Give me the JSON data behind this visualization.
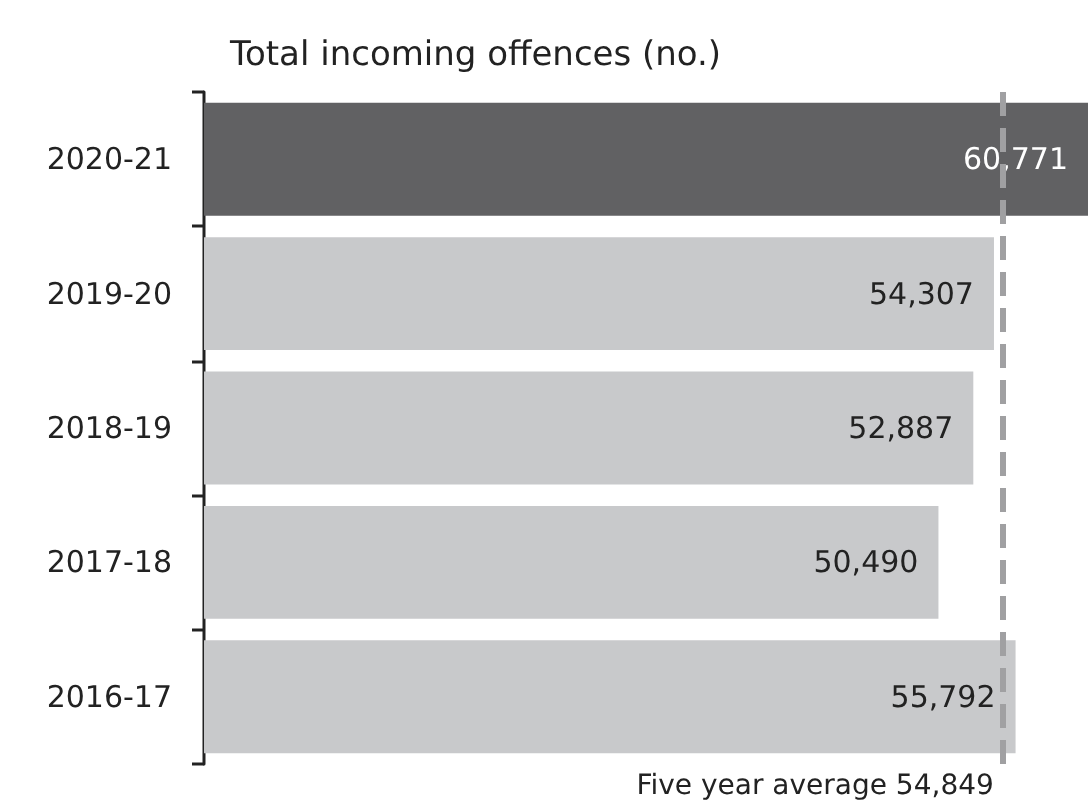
{
  "chart_data": {
    "type": "bar",
    "orientation": "horizontal",
    "title": "Total incoming offences (no.)",
    "categories": [
      "2020-21",
      "2019-20",
      "2018-19",
      "2017-18",
      "2016-17"
    ],
    "values": [
      60771,
      54307,
      52887,
      50490,
      55792
    ],
    "value_labels": [
      "60,771",
      "54,307",
      "52,887",
      "50,490",
      "55,792"
    ],
    "colors": [
      "#616163",
      "#c8c9cb",
      "#c8c9cb",
      "#c8c9cb",
      "#c8c9cb"
    ],
    "tick_labels": "y",
    "ref_lines": [
      {
        "axis": "x",
        "value": 54849,
        "label": "Five year average 54,849",
        "color": "#a0a0a2",
        "line_style": "dashed"
      }
    ]
  }
}
